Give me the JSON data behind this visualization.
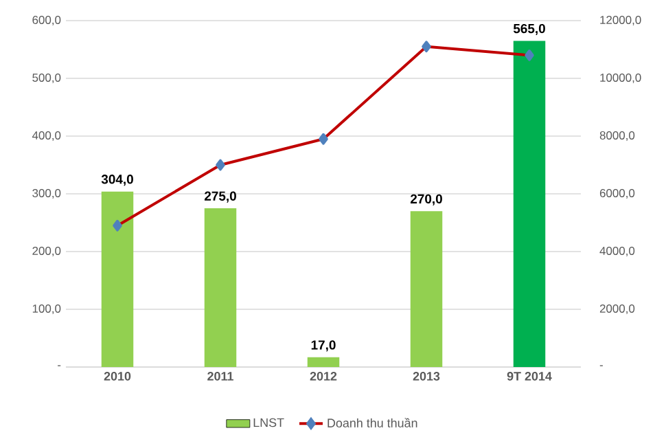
{
  "chart_data": {
    "type": "bar",
    "categories": [
      "2010",
      "2011",
      "2012",
      "2013",
      "9T 2014"
    ],
    "series": [
      {
        "name": "LNST",
        "color": "#92d050",
        "colors": [
          "#92d050",
          "#92d050",
          "#92d050",
          "#92d050",
          "#00b050"
        ],
        "values": [
          304,
          275,
          17,
          270,
          565
        ],
        "value_labels": [
          "304,0",
          "275,0",
          "17,0",
          "270,0",
          "565,0"
        ]
      },
      {
        "name": "Doanh thu thuần",
        "type": "line",
        "axis": "y2",
        "color": "#c00000",
        "marker": "diamond",
        "values": [
          4900,
          7000,
          7900,
          11100,
          10800
        ]
      }
    ],
    "ylim": [
      0,
      600
    ],
    "yticks": [
      {
        "value": 0,
        "label": "-"
      },
      {
        "value": 100,
        "label": "100,0"
      },
      {
        "value": 200,
        "label": "200,0"
      },
      {
        "value": 300,
        "label": "300,0"
      },
      {
        "value": 400,
        "label": "400,0"
      },
      {
        "value": 500,
        "label": "500,0"
      },
      {
        "value": 600,
        "label": "600,0"
      }
    ],
    "y2lim": [
      0,
      12000
    ],
    "y2ticks": [
      {
        "value": 0,
        "label": "-"
      },
      {
        "value": 2000,
        "label": "2000,0"
      },
      {
        "value": 4000,
        "label": "4000,0"
      },
      {
        "value": 6000,
        "label": "6000,0"
      },
      {
        "value": 8000,
        "label": "8000,0"
      },
      {
        "value": 10000,
        "label": "10000,0"
      },
      {
        "value": 12000,
        "label": "12000,0"
      }
    ],
    "grid": "y",
    "legend": "bottom"
  }
}
